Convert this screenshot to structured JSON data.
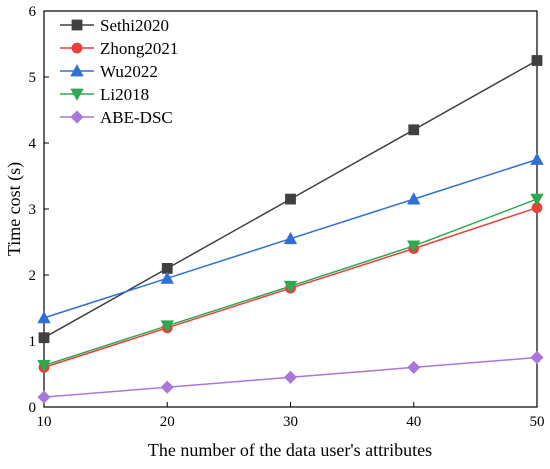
{
  "chart_data": {
    "type": "line",
    "title": "",
    "xlabel": "The number of the data user's attributes",
    "ylabel": "Time cost (s)",
    "x": [
      10,
      20,
      30,
      40,
      50
    ],
    "xlim": [
      10,
      50
    ],
    "ylim": [
      0,
      6
    ],
    "xticks": [
      10,
      20,
      30,
      40,
      50
    ],
    "yticks": [
      0,
      1,
      2,
      3,
      4,
      5,
      6
    ],
    "grid": false,
    "legend": "top-left",
    "series": [
      {
        "name": "Sethi2020",
        "marker": "square",
        "color": "#404040",
        "values": [
          1.05,
          2.1,
          3.15,
          4.2,
          5.25
        ]
      },
      {
        "name": "Zhong2021",
        "marker": "circle",
        "color": "#e8403a",
        "values": [
          0.6,
          1.2,
          1.8,
          2.4,
          3.02
        ]
      },
      {
        "name": "Wu2022",
        "marker": "triangle-up",
        "color": "#2f6fd6",
        "values": [
          1.35,
          1.95,
          2.55,
          3.15,
          3.75
        ]
      },
      {
        "name": "Li2018",
        "marker": "triangle-down",
        "color": "#2fa84f",
        "values": [
          0.63,
          1.23,
          1.83,
          2.44,
          3.15
        ]
      },
      {
        "name": "ABE-DSC",
        "marker": "diamond",
        "color": "#a977d9",
        "values": [
          0.15,
          0.3,
          0.45,
          0.6,
          0.75
        ]
      }
    ]
  }
}
